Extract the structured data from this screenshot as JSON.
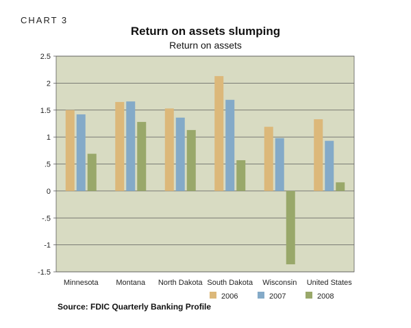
{
  "chart_label": "CHART 3",
  "chart_data": {
    "type": "bar",
    "title": "Return on assets slumping",
    "subtitle": "Return on assets",
    "xlabel": "",
    "ylabel": "",
    "ylim": [
      -1.5,
      2.5
    ],
    "yticks": [
      -1.5,
      -1,
      -0.5,
      0,
      0.5,
      1,
      1.5,
      2,
      2.5
    ],
    "ytick_labels": [
      "-1.5",
      "-1",
      "-.5",
      "0",
      ".5",
      "1",
      "1.5",
      "2",
      "2.5"
    ],
    "categories": [
      "Minnesota",
      "Montana",
      "North Dakota",
      "South Dakota",
      "Wisconsin",
      "United States"
    ],
    "series": [
      {
        "name": "2006",
        "color": "#dcb87a",
        "values": [
          1.5,
          1.65,
          1.53,
          2.13,
          1.19,
          1.33
        ]
      },
      {
        "name": "2007",
        "color": "#84aac8",
        "values": [
          1.42,
          1.66,
          1.36,
          1.69,
          0.98,
          0.93
        ]
      },
      {
        "name": "2008",
        "color": "#99a86a",
        "values": [
          0.69,
          1.28,
          1.13,
          0.57,
          -1.36,
          0.16
        ]
      }
    ],
    "grid": true,
    "legend": "bottom-right",
    "plot_background": "#d8dbc2"
  },
  "source": "Source: FDIC Quarterly Banking Profile"
}
